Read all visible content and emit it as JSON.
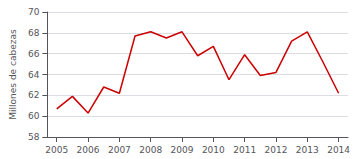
{
  "chart_data": {
    "type": "line",
    "ylabel": "Millones de cabezas",
    "x": [
      2005.0,
      2005.5,
      2006.0,
      2006.5,
      2007.0,
      2007.5,
      2008.0,
      2008.5,
      2009.0,
      2009.5,
      2010.0,
      2010.5,
      2011.0,
      2011.5,
      2012.0,
      2012.5,
      2013.0,
      2013.5,
      2014.0
    ],
    "values": [
      60.7,
      61.9,
      60.3,
      62.8,
      62.2,
      67.7,
      68.1,
      67.5,
      68.1,
      65.8,
      66.7,
      63.5,
      65.9,
      63.9,
      64.2,
      67.2,
      68.1,
      65.2,
      62.2
    ],
    "color": "#cc0000",
    "xlim": [
      2004.7,
      2014.3
    ],
    "xticks": [
      2005,
      2006,
      2007,
      2008,
      2009,
      2010,
      2011,
      2012,
      2013,
      2014
    ],
    "ylim": [
      58,
      70
    ],
    "yticks": [
      58,
      60,
      62,
      64,
      66,
      68,
      70
    ],
    "grid": true
  }
}
